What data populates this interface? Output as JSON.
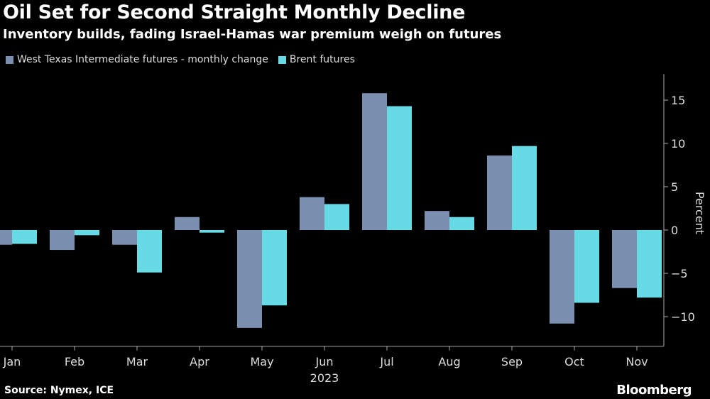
{
  "title": "Oil Set for Second Straight Monthly Decline",
  "subtitle": "Inventory builds, fading Israel-Hamas war premium weigh on futures",
  "source": "Source: Nymex, ICE",
  "logo": "Bloomberg",
  "chart_data": {
    "type": "bar",
    "categories": [
      "Jan",
      "Feb",
      "Mar",
      "Apr",
      "May",
      "Jun",
      "Jul",
      "Aug",
      "Sep",
      "Oct",
      "Nov"
    ],
    "xlabel": "2023",
    "ylabel": "Percent",
    "ylim": [
      -13,
      18
    ],
    "yticks": [
      15,
      10,
      5,
      0,
      -5,
      -10
    ],
    "legend_position": "top-left",
    "grid": false,
    "series": [
      {
        "name": "West Texas Intermediate futures - monthly change",
        "color": "#7b8fb0",
        "values": [
          -1.7,
          -2.3,
          -1.7,
          1.5,
          -11.3,
          3.8,
          15.8,
          2.2,
          8.6,
          -10.8,
          -6.7
        ]
      },
      {
        "name": "Brent futures",
        "color": "#66dbe6",
        "values": [
          -1.6,
          -0.6,
          -4.9,
          -0.3,
          -8.7,
          3.0,
          14.3,
          1.5,
          9.7,
          -8.4,
          -7.8
        ]
      }
    ]
  }
}
